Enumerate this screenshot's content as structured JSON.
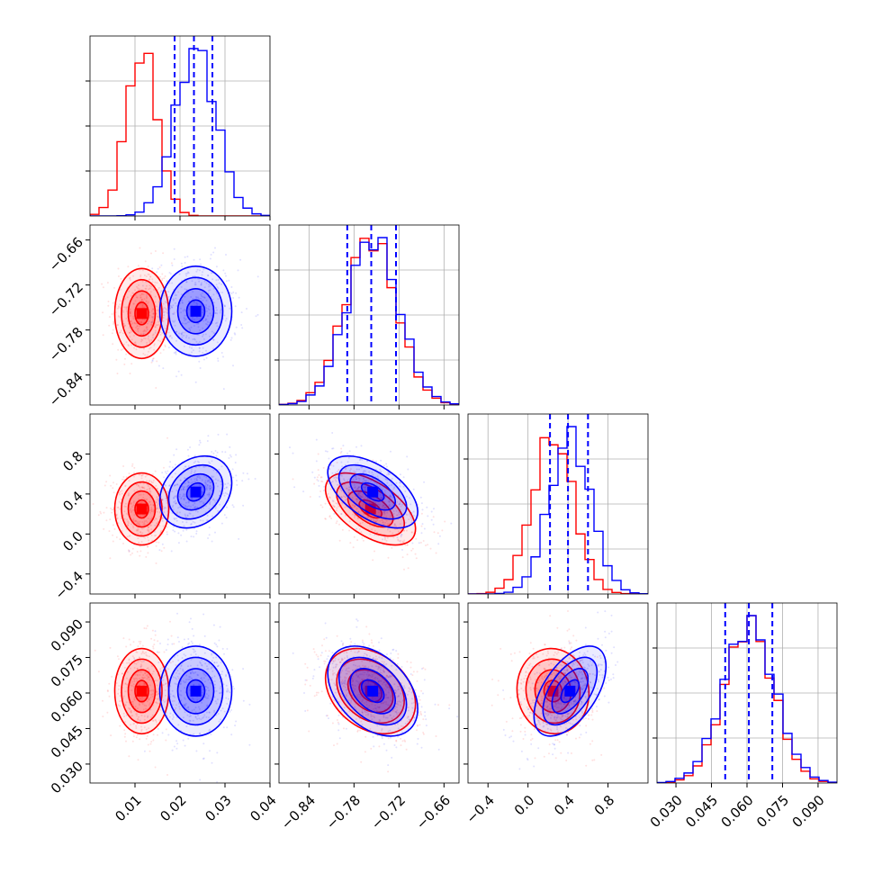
{
  "chart_data": {
    "type": "corner",
    "colors": {
      "series_a": "#ff0000",
      "series_b": "#0000ff"
    },
    "series": [
      {
        "color": "#ff0000",
        "means": [
          0.0115,
          -0.758,
          0.25,
          0.0608
        ],
        "stds": [
          0.003,
          0.03,
          0.18,
          0.009
        ],
        "corr": {
          "0-1": 0.0,
          "0-2": 0.0,
          "0-3": 0.0,
          "1-2": -0.55,
          "1-3": -0.3,
          "2-3": -0.05
        }
      },
      {
        "color": "#0000ff",
        "means": [
          0.0235,
          -0.755,
          0.42,
          0.0608
        ],
        "stds": [
          0.004,
          0.03,
          0.18,
          0.0095
        ],
        "corr": {
          "0-1": 0.0,
          "0-2": 0.25,
          "0-3": 0.0,
          "1-2": -0.55,
          "1-3": -0.4,
          "2-3": 0.55
        }
      }
    ],
    "params": [
      {
        "range": [
          0.0,
          0.04
        ],
        "ticks": [
          0.01,
          0.02,
          0.03,
          0.04
        ],
        "tick_labels": [
          "0.01",
          "0.02",
          "0.03",
          "0.04"
        ],
        "quantiles": [
          0.0188,
          0.0231,
          0.0272
        ],
        "hist_a_peak": 0.0115,
        "hist_b_peak": 0.0235
      },
      {
        "range": [
          -0.88,
          -0.64
        ],
        "ticks": [
          -0.84,
          -0.78,
          -0.72,
          -0.66
        ],
        "tick_labels": [
          "−0.84",
          "−0.78",
          "−0.72",
          "−0.66"
        ],
        "quantiles": [
          -0.789,
          -0.757,
          -0.724
        ]
      },
      {
        "range": [
          -0.6,
          1.2
        ],
        "ticks": [
          -0.4,
          0.0,
          0.4,
          0.8
        ],
        "tick_labels": [
          "−0.4",
          "0.0",
          "0.4",
          "0.8"
        ],
        "quantiles": [
          0.22,
          0.4,
          0.6
        ]
      },
      {
        "range": [
          0.022,
          0.098
        ],
        "ticks": [
          0.03,
          0.045,
          0.06,
          0.075,
          0.09
        ],
        "tick_labels": [
          "0.030",
          "0.045",
          "0.060",
          "0.075",
          "0.090"
        ],
        "quantiles": [
          0.0508,
          0.0608,
          0.0707
        ]
      }
    ]
  }
}
